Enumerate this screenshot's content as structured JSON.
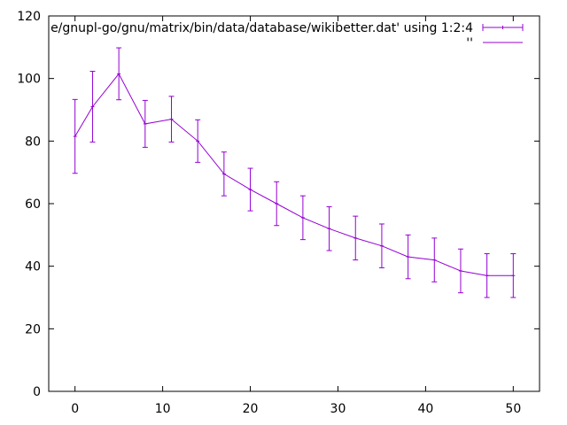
{
  "chart_data": {
    "type": "line",
    "title": "",
    "xlabel": "",
    "ylabel": "",
    "xlim": [
      -3,
      53
    ],
    "ylim": [
      0,
      120
    ],
    "xticks": [
      0,
      10,
      20,
      30,
      40,
      50
    ],
    "yticks": [
      0,
      20,
      40,
      60,
      80,
      100,
      120
    ],
    "grid": false,
    "legend_position": "top-right",
    "series": [
      {
        "name": "e/gnupl-go/gnu/matrix/bin/data/database/wikibetter.dat' using 1:2:4",
        "style": "errorbars",
        "color": "#9400d3",
        "x": [
          0,
          2,
          5,
          8,
          11,
          14,
          17,
          20,
          23,
          26,
          29,
          32,
          35,
          38,
          41,
          44,
          47,
          50
        ],
        "y": [
          81.5,
          91,
          101.5,
          85.5,
          87,
          80,
          69.5,
          64.5,
          60,
          55.5,
          52,
          49,
          46.5,
          43,
          42,
          38.5,
          37,
          37
        ],
        "yerr": [
          11.8,
          11.3,
          8.3,
          7.5,
          7.3,
          6.8,
          7,
          6.8,
          7,
          7,
          7,
          7,
          7,
          7,
          7,
          7,
          7,
          7
        ]
      },
      {
        "name": "''",
        "style": "lines",
        "color": "#9400d3",
        "x": [
          0,
          2,
          5,
          8,
          11,
          14,
          17,
          20,
          23,
          26,
          29,
          32,
          35,
          38,
          41,
          44,
          47,
          50
        ],
        "y": [
          81.5,
          91,
          101.5,
          85.5,
          87,
          80,
          69.5,
          64.5,
          60,
          55.5,
          52,
          49,
          46.5,
          43,
          42,
          38.5,
          37,
          37
        ]
      }
    ]
  }
}
